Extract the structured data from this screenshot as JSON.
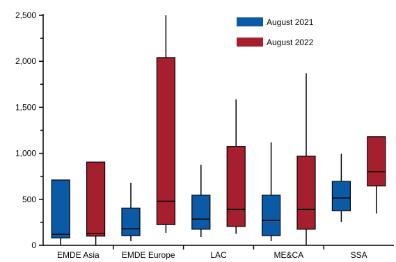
{
  "chart_data": {
    "type": "box",
    "categories": [
      "EMDE Asia",
      "EMDE Europe",
      "LAC",
      "ME&CA",
      "SSA"
    ],
    "series": [
      {
        "name": "August 2021",
        "color": "#0b5aa6",
        "boxes": [
          {
            "min": 5,
            "q1": 80,
            "median": 120,
            "q3": 710,
            "max": 710
          },
          {
            "min": 45,
            "q1": 105,
            "median": 180,
            "q3": 405,
            "max": 680
          },
          {
            "min": 90,
            "q1": 175,
            "median": 285,
            "q3": 545,
            "max": 875
          },
          {
            "min": 45,
            "q1": 105,
            "median": 270,
            "q3": 545,
            "max": 1120
          },
          {
            "min": 255,
            "q1": 375,
            "median": 515,
            "q3": 695,
            "max": 995
          }
        ]
      },
      {
        "name": "August 2022",
        "color": "#a61f2f",
        "boxes": [
          {
            "min": 5,
            "q1": 100,
            "median": 130,
            "q3": 905,
            "max": 905
          },
          {
            "min": 135,
            "q1": 225,
            "median": 480,
            "q3": 2040,
            "max": 2500
          },
          {
            "min": 125,
            "q1": 205,
            "median": 390,
            "q3": 1075,
            "max": 1585
          },
          {
            "min": 5,
            "q1": 175,
            "median": 390,
            "q3": 970,
            "max": 1870
          },
          {
            "min": 345,
            "q1": 645,
            "median": 800,
            "q3": 1180,
            "max": 1180
          }
        ]
      }
    ],
    "ylim": [
      0,
      2500
    ],
    "yticks": [
      0,
      500,
      1000,
      1500,
      2000,
      2500
    ],
    "ytick_labels": [
      "0",
      "500",
      "1,000",
      "1,500",
      "2,000",
      "2,500"
    ],
    "legend_position": "top-right"
  }
}
